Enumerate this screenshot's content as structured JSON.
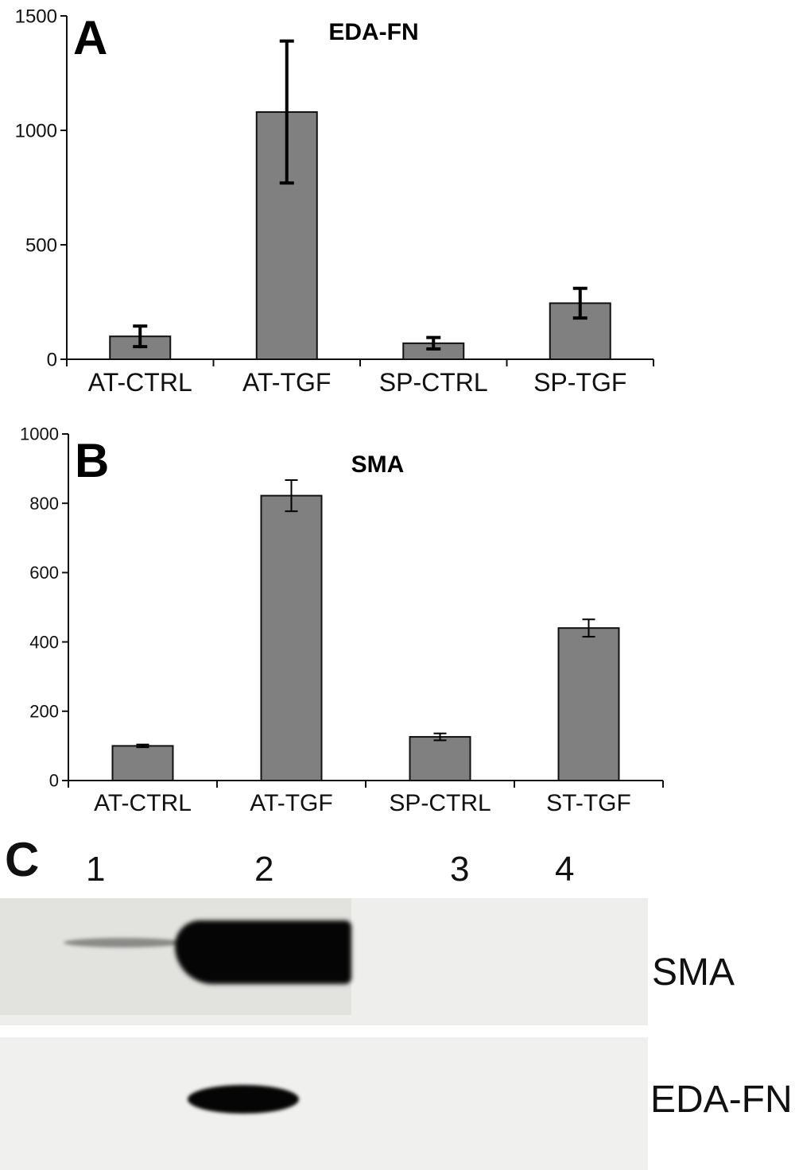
{
  "panels": {
    "a": "A",
    "b": "B",
    "c": "C"
  },
  "colors": {
    "bar_fill": "#808080",
    "bar_stroke": "#111111",
    "axis": "#111111"
  },
  "chart_data": [
    {
      "type": "bar",
      "title": "EDA-FN",
      "categories": [
        "AT-CTRL",
        "AT-TGF",
        "SP-CTRL",
        "SP-TGF"
      ],
      "values": [
        100,
        1080,
        70,
        245
      ],
      "errors": [
        45,
        310,
        25,
        65
      ],
      "ylim": [
        0,
        1500
      ],
      "yticks": [
        0,
        500,
        1000,
        1500
      ],
      "xlabel": "",
      "ylabel": "",
      "grid": false
    },
    {
      "type": "bar",
      "title": "SMA",
      "categories": [
        "AT-CTRL",
        "AT-TGF",
        "SP-CTRL",
        "ST-TGF"
      ],
      "values": [
        100,
        822,
        126,
        440
      ],
      "errors": [
        4,
        45,
        10,
        25
      ],
      "ylim": [
        0,
        1000
      ],
      "yticks": [
        0,
        200,
        400,
        600,
        800,
        1000
      ],
      "xlabel": "",
      "ylabel": "",
      "grid": false
    }
  ],
  "blot": {
    "lanes": [
      "1",
      "2",
      "3",
      "4"
    ],
    "rows": [
      "SMA",
      "EDA-FN"
    ]
  }
}
